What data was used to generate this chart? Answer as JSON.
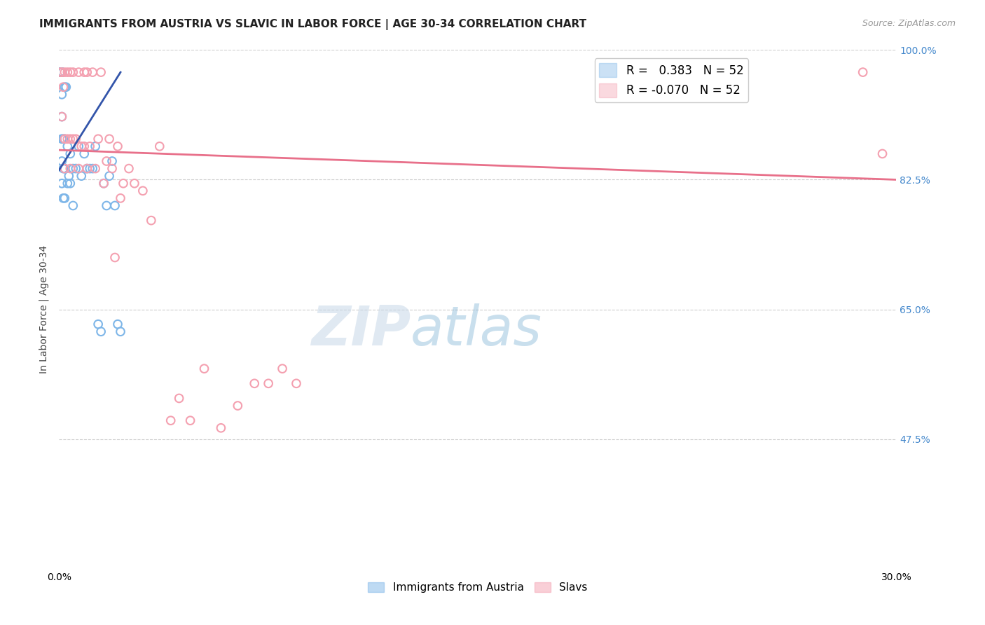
{
  "title": "IMMIGRANTS FROM AUSTRIA VS SLAVIC IN LABOR FORCE | AGE 30-34 CORRELATION CHART",
  "source": "Source: ZipAtlas.com",
  "ylabel": "In Labor Force | Age 30-34",
  "xlim": [
    0.0,
    0.3
  ],
  "ylim": [
    0.3,
    1.0
  ],
  "austria_R": 0.383,
  "slavic_R": -0.07,
  "N": 52,
  "blue_color": "#7EB6E8",
  "pink_color": "#F4A0B0",
  "blue_line_color": "#3355AA",
  "pink_line_color": "#E8708A",
  "austria_x": [
    0.0005,
    0.0005,
    0.0005,
    0.0005,
    0.0005,
    0.0005,
    0.0005,
    0.0005,
    0.0005,
    0.0005,
    0.001,
    0.001,
    0.001,
    0.001,
    0.001,
    0.001,
    0.001,
    0.001,
    0.001,
    0.001,
    0.0015,
    0.0015,
    0.0015,
    0.002,
    0.002,
    0.002,
    0.002,
    0.0025,
    0.003,
    0.003,
    0.0035,
    0.004,
    0.004,
    0.005,
    0.005,
    0.006,
    0.007,
    0.008,
    0.009,
    0.01,
    0.011,
    0.012,
    0.013,
    0.014,
    0.015,
    0.016,
    0.017,
    0.018,
    0.019,
    0.02,
    0.021,
    0.022
  ],
  "austria_y": [
    0.97,
    0.97,
    0.97,
    0.97,
    0.97,
    0.97,
    0.97,
    0.97,
    0.97,
    0.97,
    0.97,
    0.97,
    0.97,
    0.97,
    0.97,
    0.94,
    0.91,
    0.88,
    0.85,
    0.82,
    0.88,
    0.84,
    0.8,
    0.95,
    0.88,
    0.84,
    0.8,
    0.95,
    0.87,
    0.82,
    0.83,
    0.86,
    0.82,
    0.84,
    0.79,
    0.84,
    0.87,
    0.83,
    0.86,
    0.84,
    0.84,
    0.84,
    0.87,
    0.63,
    0.62,
    0.82,
    0.79,
    0.83,
    0.85,
    0.79,
    0.63,
    0.62
  ],
  "slavic_x": [
    0.0005,
    0.001,
    0.001,
    0.0015,
    0.002,
    0.002,
    0.002,
    0.003,
    0.003,
    0.004,
    0.004,
    0.004,
    0.005,
    0.005,
    0.006,
    0.007,
    0.007,
    0.008,
    0.009,
    0.009,
    0.01,
    0.01,
    0.011,
    0.012,
    0.013,
    0.014,
    0.015,
    0.016,
    0.017,
    0.018,
    0.019,
    0.02,
    0.021,
    0.022,
    0.023,
    0.025,
    0.027,
    0.03,
    0.033,
    0.036,
    0.04,
    0.043,
    0.047,
    0.052,
    0.058,
    0.064,
    0.07,
    0.075,
    0.08,
    0.085,
    0.288,
    0.295
  ],
  "slavic_y": [
    0.97,
    0.97,
    0.91,
    0.95,
    0.97,
    0.88,
    0.84,
    0.97,
    0.88,
    0.97,
    0.88,
    0.84,
    0.97,
    0.88,
    0.88,
    0.97,
    0.84,
    0.87,
    0.97,
    0.87,
    0.97,
    0.84,
    0.87,
    0.97,
    0.84,
    0.88,
    0.97,
    0.82,
    0.85,
    0.88,
    0.84,
    0.72,
    0.87,
    0.8,
    0.82,
    0.84,
    0.82,
    0.81,
    0.77,
    0.87,
    0.5,
    0.53,
    0.5,
    0.57,
    0.49,
    0.52,
    0.55,
    0.55,
    0.57,
    0.55,
    0.97,
    0.86
  ],
  "blue_trend_x": [
    0.0,
    0.022
  ],
  "blue_trend_y": [
    0.838,
    0.97
  ],
  "pink_trend_x": [
    0.0,
    0.3
  ],
  "pink_trend_y": [
    0.865,
    0.825
  ],
  "watermark_zip": "ZIP",
  "watermark_atlas": "atlas",
  "grid_color": "#CCCCCC",
  "background_color": "#FFFFFF",
  "title_fontsize": 11,
  "axis_label_fontsize": 10,
  "tick_fontsize": 10,
  "legend_fontsize": 12,
  "right_label_color": "#4488CC",
  "marker_size": 70
}
